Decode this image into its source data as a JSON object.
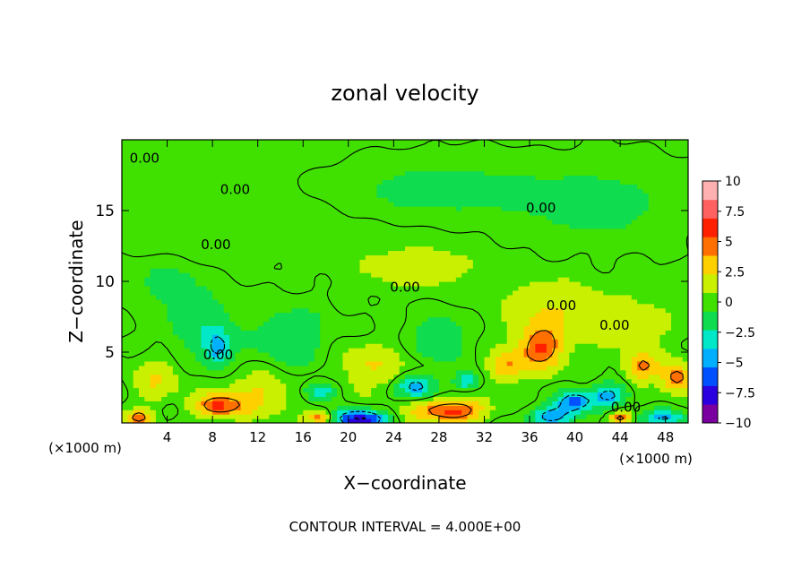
{
  "chart_data": {
    "type": "heatmap",
    "title": "zonal velocity",
    "xlabel": "X−coordinate",
    "ylabel": "Z−coordinate",
    "x_unit_left": "(×1000 m)",
    "x_unit_right": "(×1000 m)",
    "xlim": [
      0,
      50
    ],
    "ylim": [
      0,
      20
    ],
    "x_ticks": [
      4,
      8,
      12,
      16,
      20,
      24,
      28,
      32,
      36,
      40,
      44,
      48
    ],
    "x_tick_labels": [
      "4",
      "8",
      "12",
      "16",
      "20",
      "24",
      "28",
      "32",
      "36",
      "40",
      "44",
      "48"
    ],
    "y_ticks": [
      5,
      10,
      15
    ],
    "y_tick_labels": [
      "5",
      "10",
      "15"
    ],
    "contour_labels": [
      "0.00",
      "0.00",
      "0.00",
      "0.00",
      "0.00",
      "0.00",
      "0.00",
      "0.00",
      "0.00"
    ],
    "footnote": "CONTOUR INTERVAL = 4.000E+00",
    "colorbar": {
      "range": [
        -10,
        10
      ],
      "tick_values": [
        10,
        7.5,
        5,
        2.5,
        0,
        -2.5,
        -5,
        -7.5,
        -10
      ],
      "tick_labels": [
        "10",
        "7.5",
        "5",
        "2.5",
        "0",
        "−2.5",
        "−5",
        "−7.5",
        "−10"
      ],
      "colors": [
        "#7a00a0",
        "#2a00e0",
        "#0050ff",
        "#00b0ff",
        "#00e8c8",
        "#10dc50",
        "#40e000",
        "#c8f000",
        "#ffd000",
        "#ff7000",
        "#ff2000",
        "#ff6060",
        "#ffb0b0"
      ]
    },
    "regions": [
      {
        "x": 24,
        "y": 16,
        "v": 0.3,
        "sx": 30,
        "sy": 4
      },
      {
        "x": 28,
        "y": 16.5,
        "v": -1.6,
        "sx": 9,
        "sy": 2
      },
      {
        "x": 42,
        "y": 15.5,
        "v": -1.4,
        "sx": 7,
        "sy": 2.5
      },
      {
        "x": 8,
        "y": 13.5,
        "v": 0.4,
        "sx": 8,
        "sy": 2
      },
      {
        "x": 26,
        "y": 11,
        "v": 1.6,
        "sx": 5,
        "sy": 1.5
      },
      {
        "x": 38,
        "y": 8,
        "v": 2.2,
        "sx": 4,
        "sy": 2
      },
      {
        "x": 45,
        "y": 7,
        "v": 1.4,
        "sx": 4,
        "sy": 2
      },
      {
        "x": 7,
        "y": 7,
        "v": -1.8,
        "sx": 3,
        "sy": 2
      },
      {
        "x": 4,
        "y": 10,
        "v": -1.2,
        "sx": 3,
        "sy": 1.5
      },
      {
        "x": 8.5,
        "y": 5.3,
        "v": -4.5,
        "sx": 1.2,
        "sy": 1.2
      },
      {
        "x": 37,
        "y": 5.3,
        "v": 5.3,
        "sx": 2,
        "sy": 1.5
      },
      {
        "x": 34,
        "y": 4,
        "v": 3.8,
        "sx": 1.5,
        "sy": 1
      },
      {
        "x": 46,
        "y": 4,
        "v": 4.2,
        "sx": 1.5,
        "sy": 1
      },
      {
        "x": 49,
        "y": 3.2,
        "v": 5,
        "sx": 1.3,
        "sy": 1
      },
      {
        "x": 8.5,
        "y": 1.2,
        "v": 5.5,
        "sx": 2,
        "sy": 0.8
      },
      {
        "x": 29,
        "y": 0.9,
        "v": 6,
        "sx": 3,
        "sy": 0.8
      },
      {
        "x": 26,
        "y": 2.6,
        "v": -5,
        "sx": 1.5,
        "sy": 0.8
      },
      {
        "x": 30.5,
        "y": 3,
        "v": -3.8,
        "sx": 1,
        "sy": 0.6
      },
      {
        "x": 17.5,
        "y": 2.3,
        "v": -4,
        "sx": 1.2,
        "sy": 0.6
      },
      {
        "x": 21,
        "y": 0.3,
        "v": -8.5,
        "sx": 2,
        "sy": 0.6
      },
      {
        "x": 38,
        "y": 0.5,
        "v": -5,
        "sx": 2,
        "sy": 0.7
      },
      {
        "x": 40,
        "y": 1.5,
        "v": -6,
        "sx": 1.5,
        "sy": 0.7
      },
      {
        "x": 43,
        "y": 2,
        "v": -4.5,
        "sx": 1.5,
        "sy": 0.8
      },
      {
        "x": 48,
        "y": 0.4,
        "v": -4,
        "sx": 2,
        "sy": 0.6
      },
      {
        "x": 1.5,
        "y": 0.4,
        "v": 5,
        "sx": 1,
        "sy": 0.5
      },
      {
        "x": 17.5,
        "y": 0.4,
        "v": 4.5,
        "sx": 1,
        "sy": 0.5
      },
      {
        "x": 44,
        "y": 0.4,
        "v": 5,
        "sx": 1,
        "sy": 0.5
      },
      {
        "x": 12,
        "y": 2,
        "v": 2.5,
        "sx": 3,
        "sy": 1.5
      },
      {
        "x": 3,
        "y": 3,
        "v": 2.2,
        "sx": 2,
        "sy": 1.5
      },
      {
        "x": 22,
        "y": 4,
        "v": 2.2,
        "sx": 3,
        "sy": 1.5
      },
      {
        "x": 15,
        "y": 6,
        "v": -2,
        "sx": 3,
        "sy": 2
      },
      {
        "x": 28,
        "y": 6,
        "v": -2.3,
        "sx": 2,
        "sy": 1.5
      }
    ]
  }
}
